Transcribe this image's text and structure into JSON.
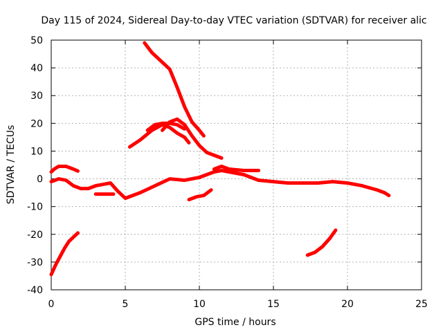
{
  "chart_data": {
    "type": "line",
    "title": "Day 115 of 2024, Sidereal Day-to-day VTEC variation (SDTVAR) for receiver alic",
    "xlabel": "GPS time / hours",
    "ylabel": "SDTVAR / TECUs",
    "xlim": [
      0,
      25
    ],
    "ylim": [
      -40,
      50
    ],
    "xticks": [
      0,
      5,
      10,
      15,
      20,
      25
    ],
    "yticks": [
      -40,
      -30,
      -20,
      -10,
      0,
      10,
      20,
      30,
      40,
      50
    ],
    "grid": true,
    "series_color": "#ff0000",
    "series": [
      {
        "name": "seg-1",
        "x": [
          0.0,
          0.3,
          0.6,
          0.9,
          1.2,
          1.5,
          1.8
        ],
        "y": [
          -34.5,
          -31,
          -28,
          -25,
          -22.5,
          -21,
          -19.5
        ]
      },
      {
        "name": "seg-2",
        "x": [
          0.0,
          0.2,
          0.5,
          1.0,
          1.5,
          1.8
        ],
        "y": [
          2.5,
          3.5,
          4.5,
          4.5,
          3.5,
          2.8
        ]
      },
      {
        "name": "seg-3",
        "x": [
          0.0,
          0.5,
          1.0,
          1.5,
          2.0,
          2.5,
          3.0,
          3.5,
          4.0,
          4.5,
          5.0,
          5.5,
          6.0,
          7.0,
          8.0,
          9.0,
          10.0,
          11.0,
          11.5,
          12.0,
          13.0,
          14.0,
          15.0,
          16.0,
          17.0,
          18.0,
          19.0,
          20.0,
          21.0,
          22.0,
          22.5,
          22.8
        ],
        "y": [
          -1,
          0,
          -0.5,
          -2.5,
          -3.5,
          -3.5,
          -2.5,
          -2,
          -1.5,
          -4.5,
          -7,
          -6,
          -5,
          -2.5,
          0,
          -0.5,
          0.5,
          2.5,
          3,
          2.5,
          1.5,
          -0.5,
          -1,
          -1.5,
          -1.5,
          -1.5,
          -1,
          -1.5,
          -2.5,
          -4,
          -5,
          -6
        ]
      },
      {
        "name": "seg-4",
        "x": [
          3.0,
          3.5,
          4.0,
          4.2
        ],
        "y": [
          -5.5,
          -5.5,
          -5.5,
          -5.5
        ]
      },
      {
        "name": "seg-5",
        "x": [
          6.3,
          6.8,
          7.5,
          8.0,
          8.5,
          9.0,
          9.5,
          10.0,
          10.3
        ],
        "y": [
          49,
          45.5,
          42,
          39.5,
          33,
          26,
          20.5,
          17.5,
          15.5
        ]
      },
      {
        "name": "seg-6",
        "x": [
          5.3,
          6.0,
          6.8,
          7.5,
          8.0,
          8.5,
          9.0,
          9.3
        ],
        "y": [
          11.5,
          14,
          17.5,
          19.5,
          18.5,
          16.5,
          15,
          13
        ]
      },
      {
        "name": "seg-7",
        "x": [
          7.5,
          8.0,
          8.5,
          9.0,
          9.5,
          10.0,
          10.5,
          11.0,
          11.5
        ],
        "y": [
          17.5,
          20.5,
          21.5,
          19.5,
          15.5,
          12,
          9.5,
          8.5,
          7.5
        ]
      },
      {
        "name": "seg-8",
        "x": [
          6.5,
          7.0,
          7.5,
          8.0,
          8.5,
          9.0
        ],
        "y": [
          17.5,
          19.5,
          20,
          20,
          19.5,
          18
        ]
      },
      {
        "name": "seg-9",
        "x": [
          11.0,
          11.5,
          12.0,
          13.0,
          14.0
        ],
        "y": [
          3.5,
          4.5,
          3.5,
          3,
          3
        ]
      },
      {
        "name": "seg-10",
        "x": [
          9.3,
          9.8,
          10.3,
          10.8
        ],
        "y": [
          -7.5,
          -6.5,
          -6,
          -4
        ]
      },
      {
        "name": "seg-11",
        "x": [
          17.3,
          17.8,
          18.3,
          18.8,
          19.2
        ],
        "y": [
          -27.5,
          -26.5,
          -24.5,
          -21.5,
          -18.5
        ]
      }
    ]
  }
}
